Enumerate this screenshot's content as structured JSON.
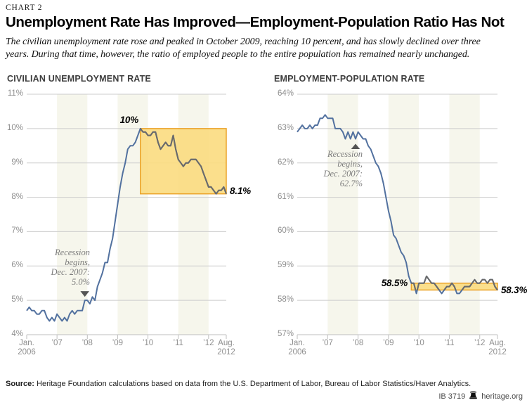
{
  "header": {
    "chart_label": "CHART 2",
    "title": "Unemployment Rate Has Improved—Employment-Population Ratio Has Not",
    "subtitle": "The civilian unemployment rate rose and peaked in October 2009, reaching 10 percent, and has slowly declined over three years. During that time, however, the ratio of employed people to the entire population has remained nearly unchanged."
  },
  "footer": {
    "source_label": "Source:",
    "source_text": " Heritage Foundation calculations based on data from the U.S. Department of Labor, Bureau of Labor Statistics/Haver Analytics.",
    "report_id": "IB 3719",
    "site": "heritage.org",
    "icon": "liberty-bell-icon"
  },
  "colors": {
    "line_blue": "#52719f",
    "line_gray": "#6a6a6a",
    "highlight_fill": "#fbdc80",
    "highlight_border": "#eba32a",
    "stripe": "#f6f6ec",
    "gridline": "#cccccc",
    "axis": "#bfbfbf",
    "tick_label": "#8e8e8e",
    "marker": "#555555"
  },
  "chart_data": [
    {
      "type": "line",
      "title": "CIVILIAN UNEMPLOYMENT RATE",
      "series_name": "Civilian unemployment rate (monthly, Jan. 2006 - Aug. 2012)",
      "ylim": [
        4,
        11
      ],
      "y_tick_labels": [
        "11%",
        "10%",
        "9%",
        "8%",
        "7%",
        "6%",
        "5%",
        "4%"
      ],
      "x_tick_labels": [
        [
          "Jan.",
          "2006"
        ],
        [
          "’07"
        ],
        [
          "’08"
        ],
        [
          "’09"
        ],
        [
          "’10"
        ],
        [
          "’11"
        ],
        [
          "’12"
        ],
        [
          "Aug.",
          "2012"
        ]
      ],
      "x_tick_months": [
        0,
        12,
        24,
        36,
        48,
        60,
        72,
        79
      ],
      "values": [
        4.7,
        4.8,
        4.7,
        4.7,
        4.6,
        4.6,
        4.7,
        4.7,
        4.5,
        4.4,
        4.5,
        4.4,
        4.6,
        4.5,
        4.4,
        4.5,
        4.4,
        4.6,
        4.7,
        4.6,
        4.7,
        4.7,
        4.7,
        5.0,
        5.0,
        4.9,
        5.1,
        5.0,
        5.4,
        5.6,
        5.8,
        6.1,
        6.1,
        6.5,
        6.8,
        7.3,
        7.8,
        8.3,
        8.7,
        9.0,
        9.4,
        9.5,
        9.5,
        9.6,
        9.8,
        10.0,
        9.9,
        9.9,
        9.8,
        9.8,
        9.9,
        9.9,
        9.6,
        9.4,
        9.5,
        9.6,
        9.5,
        9.5,
        9.8,
        9.4,
        9.1,
        9.0,
        8.9,
        9.0,
        9.0,
        9.1,
        9.1,
        9.1,
        9.0,
        8.9,
        8.7,
        8.5,
        8.3,
        8.3,
        8.2,
        8.1,
        8.2,
        8.2,
        8.3,
        8.1
      ],
      "highlight": {
        "from_month_index": 45,
        "from": "Oct. 2009",
        "to": "Aug. 2012",
        "top": 10.0,
        "bottom": 8.1
      },
      "annotations": {
        "peak_label": "10%",
        "end_label": "8.1%",
        "recession_lines": [
          "Recession",
          "begins,",
          "Dec. 2007:",
          "5.0%"
        ],
        "recession_month_index": 23,
        "recession_value": 5.0,
        "marker": "down-triangle"
      }
    },
    {
      "type": "line",
      "title": "EMPLOYMENT-POPULATION RATE",
      "series_name": "Employment-population ratio (monthly, Jan. 2006 - Aug. 2012)",
      "ylim": [
        57,
        64
      ],
      "y_tick_labels": [
        "64%",
        "63%",
        "62%",
        "61%",
        "60%",
        "59%",
        "58%",
        "57%"
      ],
      "x_tick_labels": [
        [
          "Jan.",
          "2006"
        ],
        [
          "’07"
        ],
        [
          "’08"
        ],
        [
          "’09"
        ],
        [
          "’10"
        ],
        [
          "’11"
        ],
        [
          "’12"
        ],
        [
          "Aug.",
          "2012"
        ]
      ],
      "x_tick_months": [
        0,
        12,
        24,
        36,
        48,
        60,
        72,
        79
      ],
      "values": [
        62.9,
        63.0,
        63.1,
        63.0,
        63.0,
        63.1,
        63.0,
        63.1,
        63.1,
        63.3,
        63.3,
        63.4,
        63.3,
        63.3,
        63.3,
        63.0,
        63.0,
        63.0,
        62.9,
        62.7,
        62.9,
        62.7,
        62.9,
        62.7,
        62.9,
        62.8,
        62.7,
        62.7,
        62.5,
        62.4,
        62.2,
        62.0,
        61.9,
        61.7,
        61.4,
        61.0,
        60.6,
        60.3,
        59.9,
        59.8,
        59.6,
        59.4,
        59.3,
        59.1,
        58.7,
        58.5,
        58.5,
        58.2,
        58.5,
        58.5,
        58.5,
        58.7,
        58.6,
        58.5,
        58.5,
        58.4,
        58.3,
        58.2,
        58.3,
        58.4,
        58.4,
        58.5,
        58.4,
        58.2,
        58.2,
        58.3,
        58.4,
        58.4,
        58.4,
        58.5,
        58.6,
        58.5,
        58.5,
        58.6,
        58.6,
        58.5,
        58.6,
        58.6,
        58.4,
        58.3
      ],
      "highlight": {
        "from_month_index": 45,
        "from": "Oct. 2009",
        "to": "Aug. 2012",
        "top": 58.5,
        "bottom": 58.3
      },
      "annotations": {
        "band_start_label": "58.5%",
        "end_label": "58.3%",
        "recession_lines": [
          "Recession",
          "begins,",
          "Dec. 2007:",
          "62.7%"
        ],
        "recession_month_index": 23,
        "recession_value": 62.7,
        "marker": "up-triangle"
      }
    }
  ]
}
